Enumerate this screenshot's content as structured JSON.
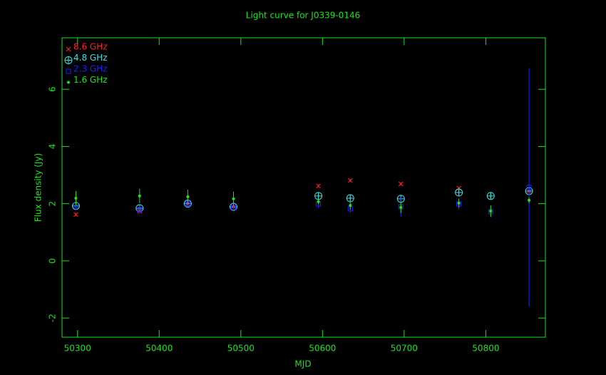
{
  "chart_data": {
    "type": "scatter",
    "title": "Light curve for J0339-0146",
    "x_label": "MJD",
    "y_label": "Flux density (Jy)",
    "x": [
      50298,
      50376,
      50435,
      50491,
      50595,
      50634,
      50696,
      50767,
      50806,
      50853
    ],
    "series": [
      {
        "name": "8.6 GHz",
        "color": "#ff2020",
        "marker": "x",
        "values": [
          1.62,
          1.74,
          1.99,
          1.89,
          2.62,
          2.81,
          2.69,
          2.54,
          null,
          2.44
        ],
        "errors": [
          0.05,
          0.05,
          0.05,
          0.05,
          0.05,
          0.05,
          0.05,
          0.05,
          null,
          0.05
        ]
      },
      {
        "name": "4.8 GHz",
        "color": "#40e0e0",
        "marker": "circle-cross",
        "values": [
          1.92,
          1.84,
          2.0,
          1.89,
          2.27,
          2.19,
          2.17,
          2.39,
          2.27,
          2.44
        ],
        "errors": [
          0.1,
          0.1,
          0.1,
          0.1,
          0.1,
          0.1,
          0.1,
          0.1,
          0.1,
          0.1
        ]
      },
      {
        "name": "2.3 GHz",
        "color": "#2020ff",
        "marker": "square",
        "values": [
          1.94,
          1.79,
          1.99,
          1.87,
          1.99,
          1.82,
          1.89,
          1.99,
          1.72,
          2.57
        ],
        "errors": [
          0.15,
          0.15,
          0.1,
          0.1,
          0.15,
          0.15,
          0.35,
          0.2,
          0.2,
          4.17
        ]
      },
      {
        "name": "1.6 GHz",
        "color": "#20e020",
        "marker": "dot",
        "values": [
          2.19,
          2.27,
          2.24,
          2.17,
          2.07,
          1.94,
          1.87,
          2.02,
          1.74,
          2.12
        ],
        "errors": [
          0.25,
          0.25,
          0.25,
          0.25,
          0.1,
          0.15,
          0.2,
          0.15,
          0.2,
          0.1
        ]
      }
    ],
    "xlim": [
      50281,
      50873
    ],
    "ylim": [
      -2.67,
      7.8
    ],
    "xticks": [
      50300,
      50400,
      50500,
      50600,
      50700,
      50800
    ],
    "yticks": [
      -2,
      0,
      2,
      4,
      6
    ],
    "axis_color": "#20e020"
  }
}
